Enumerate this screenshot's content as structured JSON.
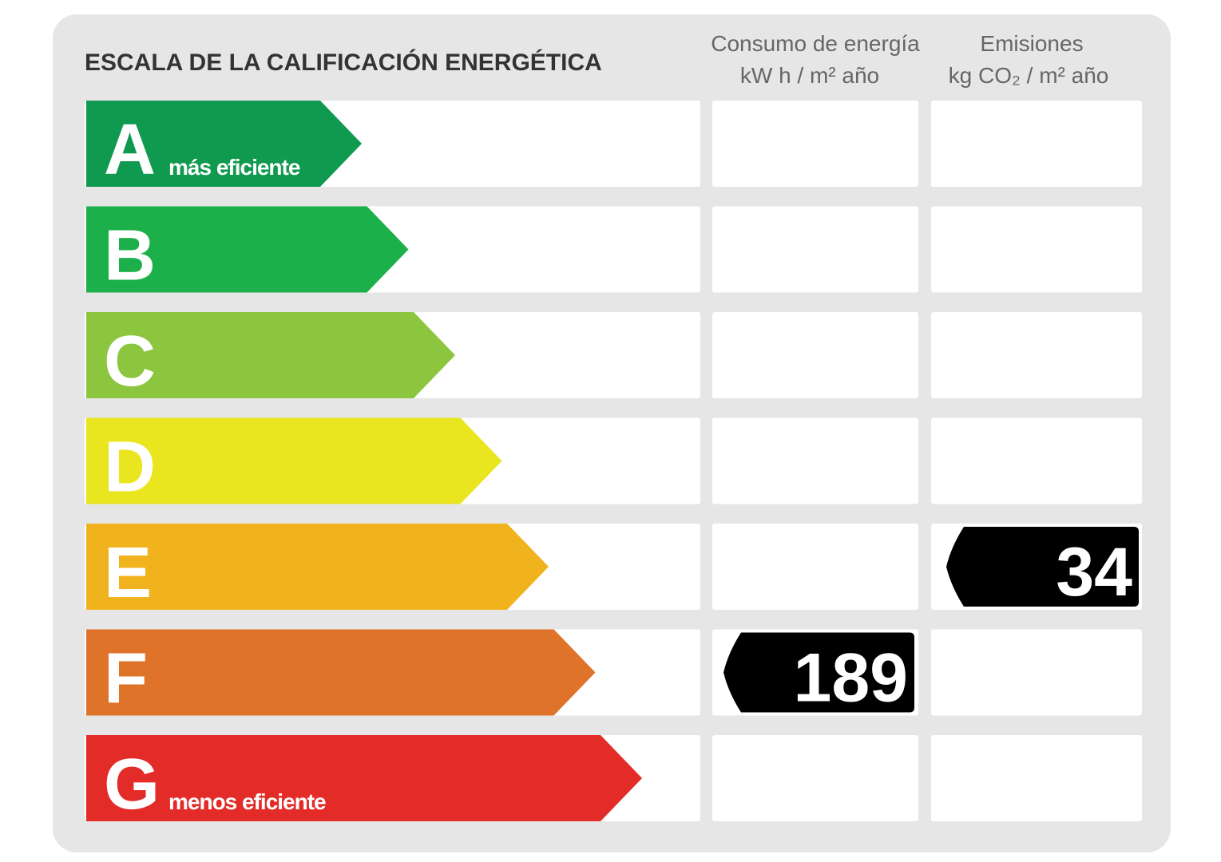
{
  "header": {
    "title": "ESCALA DE LA CALIFICACIÓN ENERGÉTICA",
    "columns": [
      {
        "line1": "Consumo de energía",
        "line2": "kW h  / m² año"
      },
      {
        "line1": "Emisiones",
        "line2": "kg CO₂  / m² año"
      }
    ]
  },
  "rows": [
    {
      "letter": "A",
      "note": "más eficiente",
      "color": "#0f9a4f"
    },
    {
      "letter": "B",
      "color": "#1cb04b"
    },
    {
      "letter": "C",
      "color": "#8cc63f"
    },
    {
      "letter": "D",
      "color": "#e9e51f"
    },
    {
      "letter": "E",
      "color": "#f0b31d"
    },
    {
      "letter": "F",
      "color": "#e0732a"
    },
    {
      "letter": "G",
      "note": "menos eficiente",
      "color": "#e32b27"
    }
  ],
  "consumption": {
    "rating": "F",
    "value": 189
  },
  "emissions": {
    "rating": "E",
    "value": 34
  }
}
